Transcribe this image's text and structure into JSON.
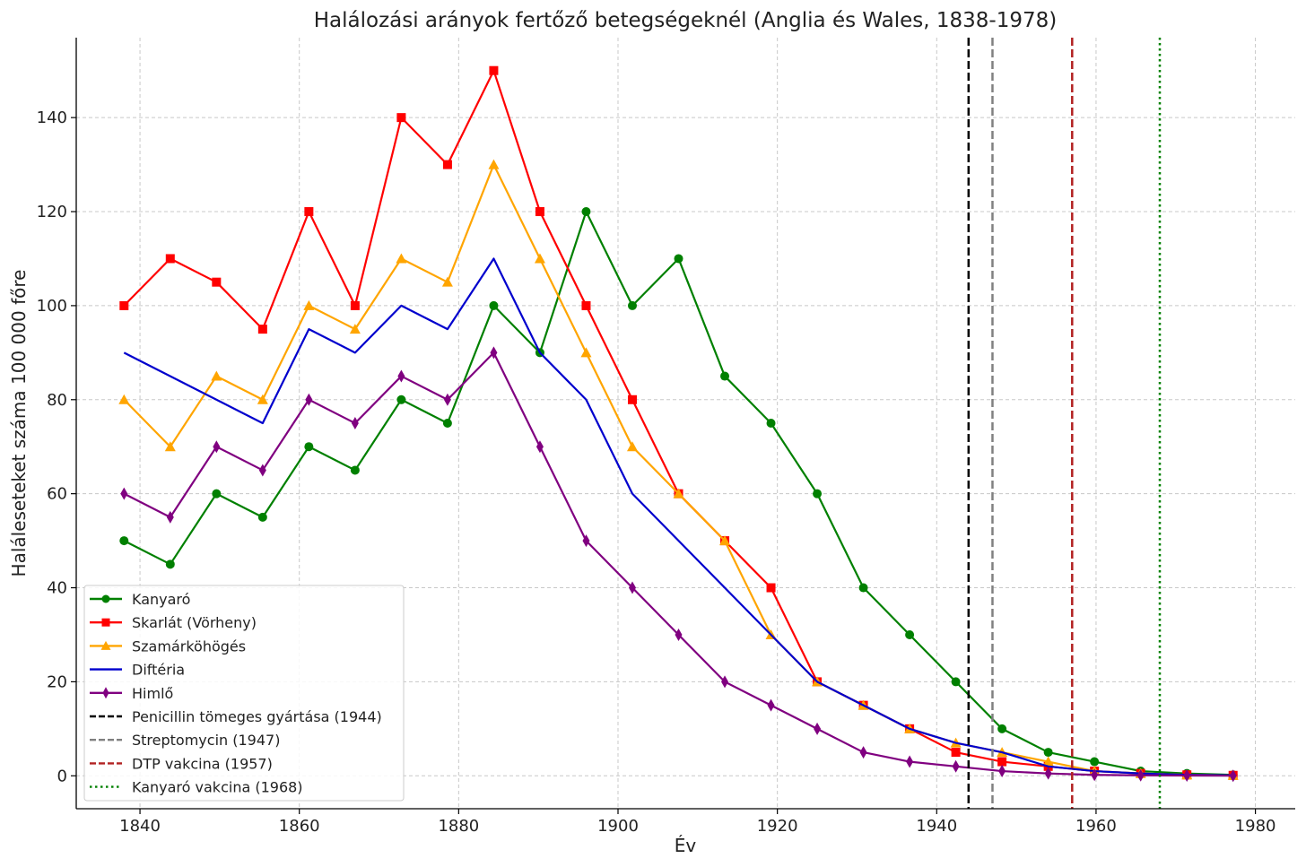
{
  "chart_data": {
    "type": "line",
    "title": "Halálozási arányok fertőző betegségeknél (Anglia és Wales, 1838-1978)",
    "xlabel": "Év",
    "ylabel": "Haláleseteket száma 100 000 főre",
    "xlim": [
      1832,
      1985
    ],
    "ylim": [
      -7,
      157
    ],
    "xticks": [
      1840,
      1860,
      1880,
      1900,
      1920,
      1940,
      1960,
      1980
    ],
    "yticks": [
      0,
      20,
      40,
      60,
      80,
      100,
      120,
      140
    ],
    "grid": true,
    "legend_position": "lower-left",
    "x": [
      1838,
      1843.8,
      1849.6,
      1855.4,
      1861.2,
      1867,
      1872.8,
      1878.6,
      1884.4,
      1890.2,
      1896,
      1901.8,
      1907.6,
      1913.4,
      1919.2,
      1925,
      1930.8,
      1936.6,
      1942.4,
      1948.2,
      1954,
      1959.8,
      1965.6,
      1971.4,
      1977.2
    ],
    "series": [
      {
        "name": "Kanyaró",
        "color": "#008000",
        "marker": "circle",
        "values": [
          50,
          45,
          60,
          55,
          70,
          65,
          80,
          75,
          100,
          90,
          120,
          100,
          110,
          85,
          75,
          60,
          40,
          30,
          20,
          10,
          5,
          3,
          1,
          0.5,
          0.2
        ]
      },
      {
        "name": "Skarlát (Vörheny)",
        "color": "#ff0000",
        "marker": "square",
        "values": [
          100,
          110,
          105,
          95,
          120,
          100,
          140,
          130,
          150,
          120,
          100,
          80,
          60,
          50,
          40,
          20,
          15,
          10,
          5,
          3,
          2,
          1,
          0.5,
          0.2,
          0.1
        ]
      },
      {
        "name": "Szamárköhögés",
        "color": "#ffa500",
        "marker": "triangle",
        "values": [
          80,
          70,
          85,
          80,
          100,
          95,
          110,
          105,
          130,
          110,
          90,
          70,
          60,
          50,
          30,
          20,
          15,
          10,
          7,
          5,
          3,
          1,
          0.5,
          0.2,
          0.1
        ]
      },
      {
        "name": "Diftéria",
        "color": "#0000cd",
        "marker": "none",
        "values": [
          90,
          null,
          null,
          75,
          95,
          90,
          100,
          95,
          110,
          90,
          80,
          60,
          null,
          null,
          30,
          20,
          15,
          10,
          7,
          5,
          2,
          1,
          0.5,
          0.2,
          0.1
        ]
      },
      {
        "name": "Himlő",
        "color": "#800080",
        "marker": "diamond",
        "values": [
          60,
          55,
          70,
          65,
          80,
          75,
          85,
          80,
          90,
          70,
          50,
          40,
          30,
          20,
          15,
          10,
          5,
          3,
          2,
          1,
          0.5,
          0.2,
          0.1,
          0.05,
          0.02
        ]
      }
    ],
    "vlines": [
      {
        "name": "Penicillin tömeges gyártása (1944)",
        "x": 1944,
        "color": "#000000",
        "style": "dashed"
      },
      {
        "name": "Streptomycin (1947)",
        "x": 1947,
        "color": "#808080",
        "style": "dashed"
      },
      {
        "name": "DTP vakcina (1957)",
        "x": 1957,
        "color": "#b22222",
        "style": "dashed"
      },
      {
        "name": "Kanyaró vakcina (1968)",
        "x": 1968,
        "color": "#008000",
        "style": "dotted"
      }
    ]
  }
}
